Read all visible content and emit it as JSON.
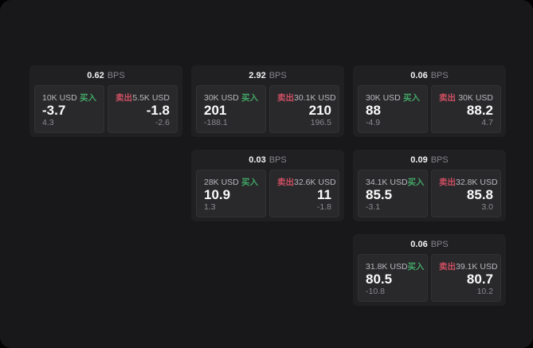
{
  "labels": {
    "bps_unit": "BPS",
    "buy": "买入",
    "sell": "卖出"
  },
  "colors": {
    "buy_green": "#42a566",
    "sell_red": "#cd4f63",
    "page_bg": "#18181a",
    "card_bg": "#202022",
    "panel_bg": "#29292b"
  },
  "cards": [
    {
      "bps": "0.62",
      "buy": {
        "size": "10K USD",
        "price": "-3.7",
        "sub": "4.3"
      },
      "sell": {
        "size": "5.5K USD",
        "price": "-1.8",
        "sub": "-2.6"
      }
    },
    {
      "bps": "2.92",
      "buy": {
        "size": "30K USD",
        "price": "201",
        "sub": "-188.1"
      },
      "sell": {
        "size": "30.1K USD",
        "price": "210",
        "sub": "196.5"
      }
    },
    {
      "bps": "0.06",
      "buy": {
        "size": "30K USD",
        "price": "88",
        "sub": "-4.9"
      },
      "sell": {
        "size": "30K USD",
        "price": "88.2",
        "sub": "4.7"
      }
    },
    {
      "bps": "0.03",
      "buy": {
        "size": "28K USD",
        "price": "10.9",
        "sub": "1.3"
      },
      "sell": {
        "size": "32.6K USD",
        "price": "11",
        "sub": "-1.8"
      }
    },
    {
      "bps": "0.09",
      "buy": {
        "size": "34.1K USD",
        "price": "85.5",
        "sub": "-3.1"
      },
      "sell": {
        "size": "32.8K USD",
        "price": "85.8",
        "sub": "3.0"
      }
    },
    {
      "bps": "0.06",
      "buy": {
        "size": "31.8K USD",
        "price": "80.5",
        "sub": "-10.8"
      },
      "sell": {
        "size": "39.1K USD",
        "price": "80.7",
        "sub": "10.2"
      }
    }
  ]
}
